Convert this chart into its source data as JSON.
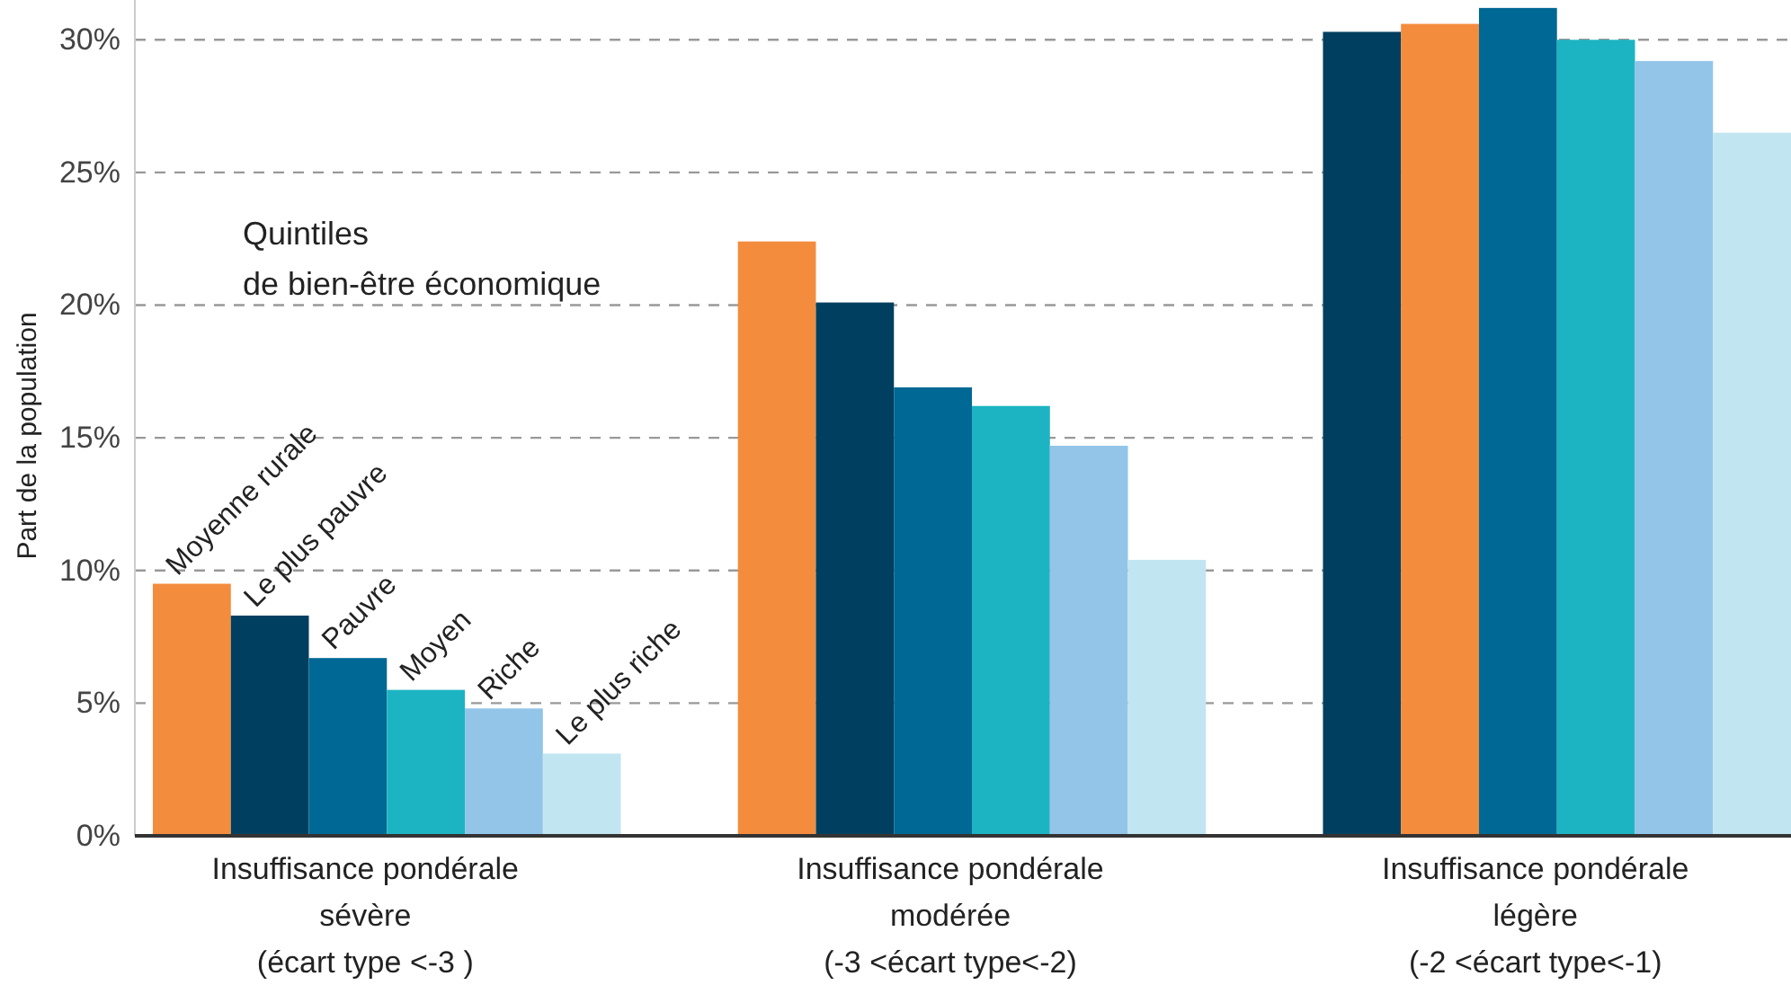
{
  "chart_data": {
    "type": "bar",
    "ylabel": "Part de la population",
    "legend_title": "Quintiles\nde bien-être économique",
    "categories": [
      "Insuffisance pondérale\nsévère\n(écart type <-3 )",
      "Insuffisance pondérale\nmodérée\n(-3 <écart type<-2)",
      "Insuffisance pondérale\nlégère\n(-2 <écart type<-1)"
    ],
    "series": [
      {
        "name": "Moyenne rurale",
        "colors": [
          "#f48c3d",
          "#f48c3d",
          "#003f5f"
        ],
        "values": [
          9.5,
          22.4,
          30.3
        ]
      },
      {
        "name": "Le plus pauvre",
        "colors": [
          "#003f5f",
          "#003f5f",
          "#f48c3d"
        ],
        "values": [
          8.3,
          20.1,
          30.6
        ]
      },
      {
        "name": "Pauvre",
        "color": "#006894",
        "values": [
          6.7,
          16.9,
          31.2
        ]
      },
      {
        "name": "Moyen",
        "color": "#1cb4c2",
        "values": [
          5.5,
          16.2,
          30.0
        ]
      },
      {
        "name": "Riche",
        "color": "#92c5e8",
        "values": [
          4.8,
          14.7,
          29.2
        ]
      },
      {
        "name": "Le plus riche",
        "color": "#c2e6f1",
        "values": [
          3.1,
          10.4,
          26.5
        ]
      }
    ],
    "ylim": [
      0,
      31.5
    ],
    "yticks": [
      {
        "value": 0,
        "label": "0%"
      },
      {
        "value": 5,
        "label": "5%"
      },
      {
        "value": 10,
        "label": "10%"
      },
      {
        "value": 15,
        "label": "15%"
      },
      {
        "value": 20,
        "label": "20%"
      },
      {
        "value": 25,
        "label": "25%"
      },
      {
        "value": 30,
        "label": "30%"
      }
    ],
    "grid": "y",
    "legend": "bottom left"
  }
}
